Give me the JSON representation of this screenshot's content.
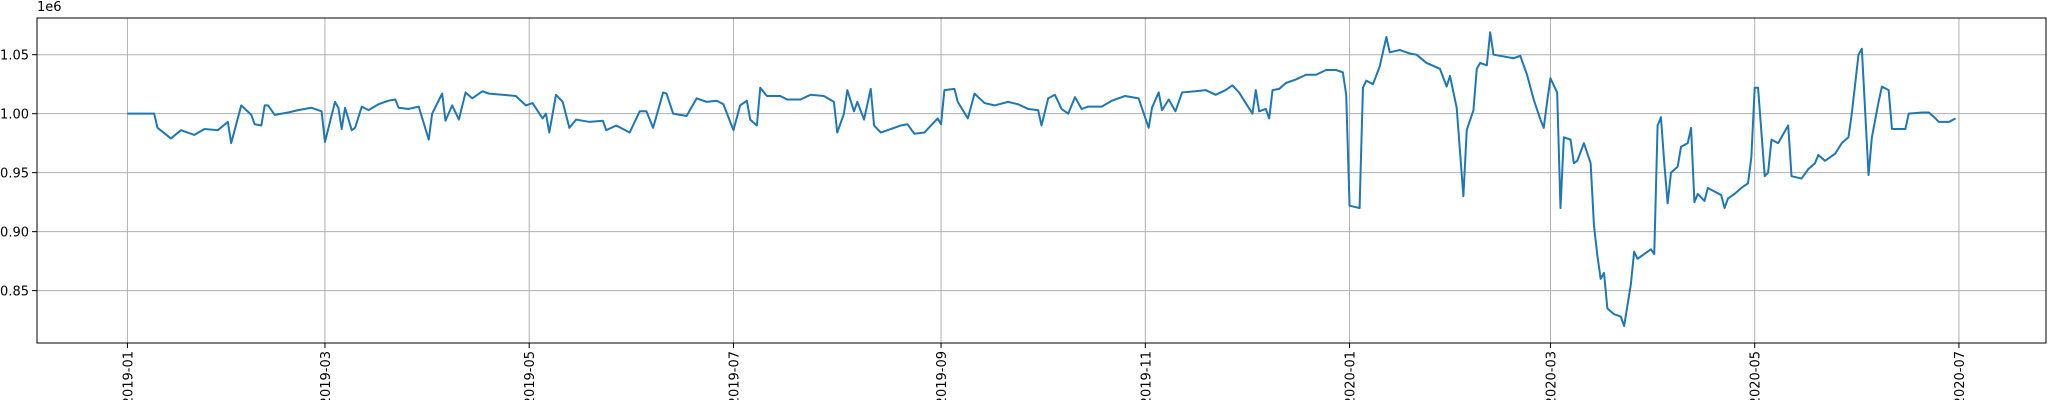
{
  "chart_data": {
    "type": "line",
    "y_offset_label": "1e6",
    "color": "#1f77b4",
    "grid": true,
    "xlim": [
      "2018-12-05",
      "2020-07-27"
    ],
    "xticks": [
      {
        "value": "2019-01-01",
        "label": "2019-01"
      },
      {
        "value": "2019-03-01",
        "label": "2019-03"
      },
      {
        "value": "2019-05-01",
        "label": "2019-05"
      },
      {
        "value": "2019-07-01",
        "label": "2019-07"
      },
      {
        "value": "2019-09-01",
        "label": "2019-09"
      },
      {
        "value": "2019-11-01",
        "label": "2019-11"
      },
      {
        "value": "2020-01-01",
        "label": "2020-01"
      },
      {
        "value": "2020-03-01",
        "label": "2020-03"
      },
      {
        "value": "2020-05-01",
        "label": "2020-05"
      },
      {
        "value": "2020-07-01",
        "label": "2020-07"
      }
    ],
    "ylim": [
      0.8056,
      1.0811
    ],
    "yticks": [
      0.85,
      {
        "value": 0.9,
        "label": "0.90"
      },
      0.95,
      {
        "value": 1.0,
        "label": "1.00"
      },
      1.05
    ],
    "x": [
      "2019-01-01",
      "2019-01-09",
      "2019-01-10",
      "2019-01-14",
      "2019-01-17",
      "2019-01-21",
      "2019-01-24",
      "2019-01-28",
      "2019-01-31",
      "2019-02-01",
      "2019-02-04",
      "2019-02-07",
      "2019-02-08",
      "2019-02-10",
      "2019-02-11",
      "2019-02-12",
      "2019-02-14",
      "2019-02-18",
      "2019-02-21",
      "2019-02-25",
      "2019-02-28",
      "2019-03-01",
      "2019-03-04",
      "2019-03-05",
      "2019-03-06",
      "2019-03-07",
      "2019-03-09",
      "2019-03-10",
      "2019-03-12",
      "2019-03-14",
      "2019-03-17",
      "2019-03-20",
      "2019-03-22",
      "2019-03-23",
      "2019-03-26",
      "2019-03-29",
      "2019-04-01",
      "2019-04-02",
      "2019-04-05",
      "2019-04-06",
      "2019-04-08",
      "2019-04-10",
      "2019-04-12",
      "2019-04-14",
      "2019-04-17",
      "2019-04-19",
      "2019-04-23",
      "2019-04-27",
      "2019-04-30",
      "2019-05-02",
      "2019-05-05",
      "2019-05-06",
      "2019-05-07",
      "2019-05-09",
      "2019-05-11",
      "2019-05-13",
      "2019-05-15",
      "2019-05-19",
      "2019-05-23",
      "2019-05-24",
      "2019-05-27",
      "2019-05-31",
      "2019-06-03",
      "2019-06-05",
      "2019-06-07",
      "2019-06-10",
      "2019-06-11",
      "2019-06-13",
      "2019-06-17",
      "2019-06-20",
      "2019-06-23",
      "2019-06-26",
      "2019-06-28",
      "2019-07-01",
      "2019-07-03",
      "2019-07-05",
      "2019-07-06",
      "2019-07-08",
      "2019-07-09",
      "2019-07-11",
      "2019-07-15",
      "2019-07-17",
      "2019-07-21",
      "2019-07-24",
      "2019-07-28",
      "2019-07-31",
      "2019-08-01",
      "2019-08-03",
      "2019-08-04",
      "2019-08-06",
      "2019-08-07",
      "2019-08-09",
      "2019-08-11",
      "2019-08-12",
      "2019-08-14",
      "2019-08-17",
      "2019-08-20",
      "2019-08-22",
      "2019-08-24",
      "2019-08-27",
      "2019-08-29",
      "2019-08-31",
      "2019-09-01",
      "2019-09-02",
      "2019-09-05",
      "2019-09-06",
      "2019-09-09",
      "2019-09-11",
      "2019-09-14",
      "2019-09-17",
      "2019-09-21",
      "2019-09-24",
      "2019-09-27",
      "2019-09-30",
      "2019-10-01",
      "2019-10-03",
      "2019-10-05",
      "2019-10-07",
      "2019-10-09",
      "2019-10-11",
      "2019-10-13",
      "2019-10-15",
      "2019-10-19",
      "2019-10-22",
      "2019-10-26",
      "2019-10-30",
      "2019-11-02",
      "2019-11-03",
      "2019-11-05",
      "2019-11-06",
      "2019-11-08",
      "2019-11-10",
      "2019-11-12",
      "2019-11-16",
      "2019-11-19",
      "2019-11-22",
      "2019-11-25",
      "2019-11-27",
      "2019-11-29",
      "2019-12-03",
      "2019-12-04",
      "2019-12-05",
      "2019-12-07",
      "2019-12-08",
      "2019-12-09",
      "2019-12-11",
      "2019-12-13",
      "2019-12-16",
      "2019-12-19",
      "2019-12-22",
      "2019-12-25",
      "2019-12-28",
      "2019-12-30",
      "2019-12-31",
      "2020-01-01",
      "2020-01-04",
      "2020-01-05",
      "2020-01-06",
      "2020-01-08",
      "2020-01-10",
      "2020-01-12",
      "2020-01-13",
      "2020-01-16",
      "2020-01-19",
      "2020-01-21",
      "2020-01-24",
      "2020-01-28",
      "2020-01-30",
      "2020-01-31",
      "2020-02-02",
      "2020-02-04",
      "2020-02-05",
      "2020-02-07",
      "2020-02-08",
      "2020-02-09",
      "2020-02-11",
      "2020-02-12",
      "2020-02-13",
      "2020-02-17",
      "2020-02-19",
      "2020-02-21",
      "2020-02-23",
      "2020-02-25",
      "2020-02-27",
      "2020-02-28",
      "2020-02-29",
      "2020-03-01",
      "2020-03-03",
      "2020-03-04",
      "2020-03-05",
      "2020-03-07",
      "2020-03-08",
      "2020-03-09",
      "2020-03-11",
      "2020-03-13",
      "2020-03-14",
      "2020-03-15",
      "2020-03-16",
      "2020-03-17",
      "2020-03-18",
      "2020-03-20",
      "2020-03-22",
      "2020-03-23",
      "2020-03-25",
      "2020-03-26",
      "2020-03-27",
      "2020-03-29",
      "2020-03-31",
      "2020-04-01",
      "2020-04-02",
      "2020-04-03",
      "2020-04-04",
      "2020-04-05",
      "2020-04-06",
      "2020-04-08",
      "2020-04-09",
      "2020-04-11",
      "2020-04-12",
      "2020-04-13",
      "2020-04-14",
      "2020-04-16",
      "2020-04-17",
      "2020-04-19",
      "2020-04-21",
      "2020-04-22",
      "2020-04-23",
      "2020-04-25",
      "2020-04-27",
      "2020-04-29",
      "2020-04-30",
      "2020-05-01",
      "2020-05-02",
      "2020-05-04",
      "2020-05-05",
      "2020-05-06",
      "2020-05-08",
      "2020-05-09",
      "2020-05-11",
      "2020-05-12",
      "2020-05-15",
      "2020-05-17",
      "2020-05-19",
      "2020-05-20",
      "2020-05-22",
      "2020-05-25",
      "2020-05-27",
      "2020-05-29",
      "2020-05-30",
      "2020-06-01",
      "2020-06-02",
      "2020-06-04",
      "2020-06-05",
      "2020-06-07",
      "2020-06-08",
      "2020-06-10",
      "2020-06-11",
      "2020-06-15",
      "2020-06-16",
      "2020-06-20",
      "2020-06-22",
      "2020-06-24",
      "2020-06-25",
      "2020-06-28",
      "2020-06-30"
    ],
    "values": [
      1.0,
      1.0,
      0.988,
      0.979,
      0.986,
      0.982,
      0.987,
      0.986,
      0.993,
      0.975,
      1.007,
      0.999,
      0.991,
      0.99,
      1.007,
      1.007,
      0.999,
      1.001,
      1.003,
      1.005,
      1.002,
      0.976,
      1.01,
      1.005,
      0.987,
      1.005,
      0.986,
      0.988,
      1.006,
      1.003,
      1.008,
      1.011,
      1.012,
      1.005,
      1.004,
      1.006,
      0.978,
      1.0,
      1.017,
      0.994,
      1.007,
      0.995,
      1.018,
      1.013,
      1.019,
      1.017,
      1.016,
      1.015,
      1.007,
      1.009,
      0.996,
      1.0,
      0.984,
      1.016,
      1.01,
      0.988,
      0.995,
      0.993,
      0.994,
      0.986,
      0.99,
      0.984,
      1.002,
      1.002,
      0.988,
      1.018,
      1.017,
      1.0,
      0.998,
      1.013,
      1.01,
      1.011,
      1.008,
      0.986,
      1.007,
      1.011,
      0.995,
      0.99,
      1.022,
      1.015,
      1.015,
      1.012,
      1.012,
      1.016,
      1.015,
      1.01,
      0.984,
      1.0,
      1.02,
      1.002,
      1.01,
      0.995,
      1.021,
      0.99,
      0.984,
      0.987,
      0.99,
      0.991,
      0.983,
      0.984,
      0.99,
      0.996,
      0.991,
      1.02,
      1.021,
      1.01,
      0.996,
      1.017,
      1.009,
      1.007,
      1.01,
      1.008,
      1.004,
      1.003,
      0.99,
      1.013,
      1.016,
      1.004,
      1.0,
      1.014,
      1.004,
      1.006,
      1.006,
      1.011,
      1.015,
      1.013,
      0.988,
      1.005,
      1.018,
      1.003,
      1.012,
      1.002,
      1.018,
      1.019,
      1.02,
      1.016,
      1.02,
      1.024,
      1.018,
      1.0,
      1.02,
      1.002,
      1.004,
      0.996,
      1.02,
      1.021,
      1.026,
      1.029,
      1.033,
      1.033,
      1.037,
      1.037,
      1.035,
      1.016,
      0.922,
      0.92,
      1.022,
      1.028,
      1.025,
      1.04,
      1.065,
      1.052,
      1.054,
      1.051,
      1.05,
      1.043,
      1.038,
      1.023,
      1.032,
      1.005,
      0.93,
      0.986,
      1.003,
      1.038,
      1.043,
      1.041,
      1.069,
      1.05,
      1.048,
      1.047,
      1.049,
      1.033,
      1.012,
      0.995,
      0.988,
      1.01,
      1.03,
      1.018,
      0.92,
      0.98,
      0.978,
      0.958,
      0.96,
      0.975,
      0.958,
      0.905,
      0.88,
      0.86,
      0.865,
      0.835,
      0.83,
      0.828,
      0.82,
      0.855,
      0.883,
      0.877,
      0.881,
      0.885,
      0.881,
      0.99,
      0.997,
      0.958,
      0.924,
      0.95,
      0.955,
      0.972,
      0.975,
      0.988,
      0.925,
      0.932,
      0.926,
      0.937,
      0.934,
      0.931,
      0.92,
      0.928,
      0.932,
      0.937,
      0.941,
      0.963,
      1.022,
      1.022,
      0.947,
      0.95,
      0.978,
      0.975,
      0.98,
      0.99,
      0.947,
      0.945,
      0.953,
      0.958,
      0.965,
      0.96,
      0.966,
      0.975,
      0.98,
      1.0,
      1.05,
      1.055,
      0.948,
      0.98,
      1.01,
      1.023,
      1.02,
      0.987,
      0.987,
      1.0,
      1.001,
      1.001,
      0.996,
      0.993,
      0.993,
      0.996
    ]
  }
}
